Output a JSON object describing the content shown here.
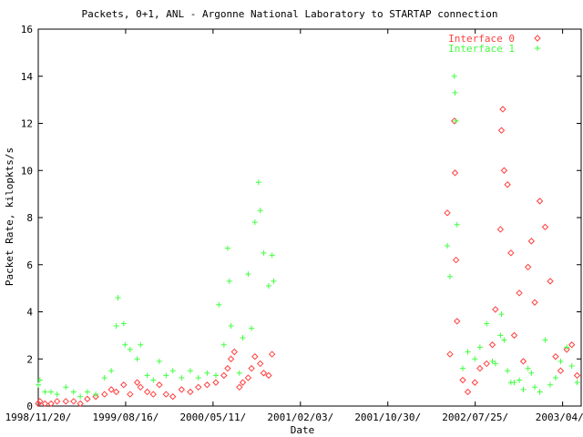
{
  "chart_data": {
    "type": "scatter",
    "title": "Packets, 0+1, ANL - Argonne National Laboratory to STARTAP connection",
    "xlabel": "Date",
    "ylabel": "Packet Rate, kilopkts/s",
    "xlim": [
      "1998-11-20",
      "2003-04-22"
    ],
    "ylim": [
      0,
      16
    ],
    "x_ticks": [
      "1998/11/20/",
      "1999/08/16/",
      "2000/05/11/",
      "2001/02/03/",
      "2001/10/30/",
      "2002/07/25/",
      "2003/04/2"
    ],
    "y_ticks": [
      0,
      2,
      4,
      6,
      8,
      10,
      12,
      14,
      16
    ],
    "legend_position": "top-right",
    "colors": {
      "Interface 0": "#ff4040",
      "Interface 1": "#40ff40"
    },
    "series": [
      {
        "name": "Interface 0",
        "marker": "diamond",
        "points": [
          [
            "1998-11-20",
            0.1
          ],
          [
            "1998-11-25",
            0.2
          ],
          [
            "1998-12-10",
            0.1
          ],
          [
            "1998-12-28",
            0.1
          ],
          [
            "1999-01-15",
            0.2
          ],
          [
            "1999-02-10",
            0.2
          ],
          [
            "1999-03-05",
            0.2
          ],
          [
            "1999-03-25",
            0.1
          ],
          [
            "1999-04-15",
            0.3
          ],
          [
            "1999-05-10",
            0.4
          ],
          [
            "1999-06-05",
            0.5
          ],
          [
            "1999-06-25",
            0.7
          ],
          [
            "1999-07-10",
            0.6
          ],
          [
            "1999-08-01",
            0.9
          ],
          [
            "1999-08-20",
            0.5
          ],
          [
            "1999-09-10",
            1.0
          ],
          [
            "1999-09-20",
            0.8
          ],
          [
            "1999-10-10",
            0.6
          ],
          [
            "1999-10-28",
            0.5
          ],
          [
            "1999-11-15",
            0.9
          ],
          [
            "1999-12-05",
            0.5
          ],
          [
            "1999-12-25",
            0.4
          ],
          [
            "2000-01-20",
            0.7
          ],
          [
            "2000-02-15",
            0.6
          ],
          [
            "2000-03-10",
            0.8
          ],
          [
            "2000-04-05",
            0.9
          ],
          [
            "2000-05-01",
            1.0
          ],
          [
            "2000-05-25",
            1.3
          ],
          [
            "2000-06-05",
            1.6
          ],
          [
            "2000-06-15",
            2.0
          ],
          [
            "2000-06-25",
            2.3
          ],
          [
            "2000-07-10",
            0.8
          ],
          [
            "2000-07-20",
            1.0
          ],
          [
            "2000-08-05",
            1.2
          ],
          [
            "2000-08-15",
            1.6
          ],
          [
            "2000-08-25",
            2.1
          ],
          [
            "2000-09-10",
            1.8
          ],
          [
            "2000-09-20",
            1.4
          ],
          [
            "2000-10-05",
            1.3
          ],
          [
            "2000-10-15",
            2.2
          ],
          [
            "2002-03-20",
            8.2
          ],
          [
            "2002-03-28",
            2.2
          ],
          [
            "2002-04-10",
            12.1
          ],
          [
            "2002-04-12",
            9.9
          ],
          [
            "2002-04-15",
            6.2
          ],
          [
            "2002-04-18",
            3.6
          ],
          [
            "2002-05-05",
            1.1
          ],
          [
            "2002-05-20",
            0.6
          ],
          [
            "2002-06-10",
            1.0
          ],
          [
            "2002-06-25",
            1.6
          ],
          [
            "2002-07-15",
            1.8
          ],
          [
            "2002-08-01",
            2.6
          ],
          [
            "2002-08-10",
            4.1
          ],
          [
            "2002-08-25",
            7.5
          ],
          [
            "2002-08-28",
            11.7
          ],
          [
            "2002-09-01",
            12.6
          ],
          [
            "2002-09-05",
            10.0
          ],
          [
            "2002-09-15",
            9.4
          ],
          [
            "2002-09-25",
            6.5
          ],
          [
            "2002-10-05",
            3.0
          ],
          [
            "2002-10-20",
            4.8
          ],
          [
            "2002-11-01",
            1.9
          ],
          [
            "2002-11-15",
            5.9
          ],
          [
            "2002-11-25",
            7.0
          ],
          [
            "2002-12-05",
            4.4
          ],
          [
            "2002-12-20",
            8.7
          ],
          [
            "2003-01-05",
            7.6
          ],
          [
            "2003-01-20",
            5.3
          ],
          [
            "2003-02-05",
            2.1
          ],
          [
            "2003-02-20",
            1.5
          ],
          [
            "2003-03-10",
            2.4
          ],
          [
            "2003-03-25",
            2.6
          ],
          [
            "2003-04-10",
            1.3
          ]
        ]
      },
      {
        "name": "Interface 1",
        "marker": "plus",
        "points": [
          [
            "1998-11-20",
            0.9
          ],
          [
            "1998-11-25",
            1.1
          ],
          [
            "1998-12-10",
            0.6
          ],
          [
            "1998-12-28",
            0.6
          ],
          [
            "1999-01-15",
            0.5
          ],
          [
            "1999-02-10",
            0.8
          ],
          [
            "1999-03-05",
            0.6
          ],
          [
            "1999-03-25",
            0.4
          ],
          [
            "1999-04-15",
            0.6
          ],
          [
            "1999-05-10",
            0.5
          ],
          [
            "1999-06-05",
            1.2
          ],
          [
            "1999-06-25",
            1.5
          ],
          [
            "1999-07-10",
            3.4
          ],
          [
            "1999-07-15",
            4.6
          ],
          [
            "1999-08-01",
            3.5
          ],
          [
            "1999-08-05",
            2.6
          ],
          [
            "1999-08-20",
            2.4
          ],
          [
            "1999-09-10",
            2.0
          ],
          [
            "1999-09-20",
            2.6
          ],
          [
            "1999-10-10",
            1.3
          ],
          [
            "1999-10-28",
            1.1
          ],
          [
            "1999-11-15",
            1.9
          ],
          [
            "1999-12-05",
            1.3
          ],
          [
            "1999-12-25",
            1.5
          ],
          [
            "2000-01-20",
            1.2
          ],
          [
            "2000-02-15",
            1.5
          ],
          [
            "2000-03-10",
            1.2
          ],
          [
            "2000-04-05",
            1.4
          ],
          [
            "2000-05-01",
            1.3
          ],
          [
            "2000-05-10",
            4.3
          ],
          [
            "2000-05-25",
            2.6
          ],
          [
            "2000-06-05",
            6.7
          ],
          [
            "2000-06-10",
            5.3
          ],
          [
            "2000-06-15",
            3.4
          ],
          [
            "2000-07-10",
            1.4
          ],
          [
            "2000-07-20",
            2.9
          ],
          [
            "2000-08-05",
            5.6
          ],
          [
            "2000-08-15",
            3.3
          ],
          [
            "2000-08-25",
            7.8
          ],
          [
            "2000-09-05",
            9.5
          ],
          [
            "2000-09-10",
            8.3
          ],
          [
            "2000-09-20",
            6.5
          ],
          [
            "2000-10-05",
            5.1
          ],
          [
            "2000-10-15",
            6.4
          ],
          [
            "2000-10-20",
            5.3
          ],
          [
            "2002-03-20",
            6.8
          ],
          [
            "2002-03-28",
            5.5
          ],
          [
            "2002-04-10",
            14.0
          ],
          [
            "2002-04-12",
            13.3
          ],
          [
            "2002-04-15",
            12.1
          ],
          [
            "2002-04-18",
            7.7
          ],
          [
            "2002-05-05",
            1.6
          ],
          [
            "2002-05-20",
            2.3
          ],
          [
            "2002-06-10",
            2.0
          ],
          [
            "2002-06-25",
            2.5
          ],
          [
            "2002-07-15",
            3.5
          ],
          [
            "2002-08-01",
            1.9
          ],
          [
            "2002-08-10",
            1.8
          ],
          [
            "2002-08-25",
            3.0
          ],
          [
            "2002-08-28",
            3.9
          ],
          [
            "2002-09-05",
            2.8
          ],
          [
            "2002-09-15",
            1.5
          ],
          [
            "2002-09-25",
            1.0
          ],
          [
            "2002-10-05",
            1.0
          ],
          [
            "2002-10-20",
            1.1
          ],
          [
            "2002-11-01",
            0.7
          ],
          [
            "2002-11-15",
            1.6
          ],
          [
            "2002-11-25",
            1.4
          ],
          [
            "2002-12-05",
            0.8
          ],
          [
            "2002-12-20",
            0.6
          ],
          [
            "2003-01-05",
            2.8
          ],
          [
            "2003-01-20",
            0.9
          ],
          [
            "2003-02-05",
            1.2
          ],
          [
            "2003-02-20",
            1.9
          ],
          [
            "2003-03-10",
            2.5
          ],
          [
            "2003-03-25",
            1.7
          ],
          [
            "2003-04-10",
            1.0
          ]
        ]
      }
    ]
  }
}
